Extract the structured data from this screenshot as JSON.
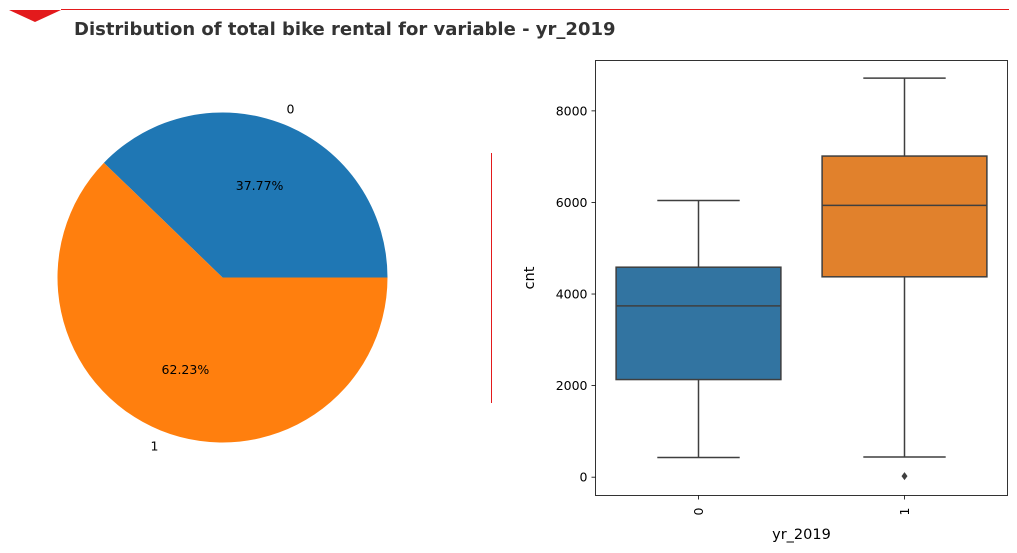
{
  "title": "Distribution of total bike rental for variable - yr_2019",
  "colors": {
    "accent": "#e31a1c",
    "series0": "#1f77b4",
    "series1": "#ff7f0e",
    "box0": "#3274a1",
    "box1": "#e1812c",
    "edge": "#3f3f3f"
  },
  "chart_data": [
    {
      "type": "pie",
      "categories": [
        "0",
        "1"
      ],
      "values": [
        37.77,
        62.23
      ],
      "data_labels": [
        "37.77%",
        "62.23%"
      ],
      "startangle": 0
    },
    {
      "type": "box",
      "categories": [
        "0",
        "1"
      ],
      "xlabel": "yr_2019",
      "ylabel": "cnt",
      "ylim": [
        -400,
        9100
      ],
      "yticks": [
        0,
        2000,
        4000,
        6000,
        8000
      ],
      "boxes": [
        {
          "category": "0",
          "whislo": 431,
          "q1": 2132,
          "med": 3740,
          "q3": 4586,
          "whishi": 6043,
          "fliers": []
        },
        {
          "category": "1",
          "whislo": 441,
          "q1": 4376,
          "med": 5936,
          "q3": 7013,
          "whishi": 8714,
          "fliers": [
            22
          ]
        }
      ]
    }
  ]
}
